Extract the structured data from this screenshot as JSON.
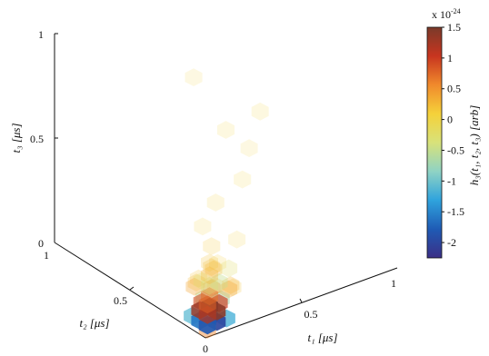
{
  "chart_data": {
    "type": "heatmap",
    "subtype": "3d-voxel-scatter",
    "axes": {
      "x": {
        "label": "t₁ [μs]",
        "range": [
          0,
          1
        ],
        "ticks": [
          "0",
          "0.5",
          "1"
        ]
      },
      "y": {
        "label": "t₂ [μs]",
        "range": [
          0,
          1
        ],
        "ticks": [
          "0",
          "0.5",
          "1"
        ]
      },
      "z": {
        "label": "t₃ [μs]",
        "range": [
          0,
          1
        ],
        "ticks": [
          "0",
          "0.5",
          "1"
        ]
      }
    },
    "colorbar": {
      "label": "h₃(t₁, t₂, t₃) [arb]",
      "multiplier": "x 10",
      "exponent": "-24",
      "range": [
        -2.25,
        1.5
      ],
      "ticks": [
        "1.5",
        "1",
        "0.5",
        "0",
        "-0.5",
        "-1",
        "-1.5",
        "-2"
      ],
      "tick_values": [
        1.5,
        1,
        0.5,
        0,
        -0.5,
        -1,
        -1.5,
        -2
      ],
      "colors": [
        "#3b2f86",
        "#1f5bb5",
        "#2fa3dd",
        "#8fd3c4",
        "#d8e27a",
        "#f5d13a",
        "#f08a2c",
        "#c8351f",
        "#7a3a2a"
      ]
    },
    "points": [
      {
        "t1": 0.05,
        "t2": 0.05,
        "t3": 0.02,
        "v": -1.8
      },
      {
        "t1": 0.1,
        "t2": 0.05,
        "t3": 0.02,
        "v": -2.0
      },
      {
        "t1": 0.05,
        "t2": 0.1,
        "t3": 0.02,
        "v": -1.6
      },
      {
        "t1": 0.1,
        "t2": 0.1,
        "t3": 0.02,
        "v": -1.4
      },
      {
        "t1": 0.15,
        "t2": 0.05,
        "t3": 0.02,
        "v": -1.2
      },
      {
        "t1": 0.05,
        "t2": 0.15,
        "t3": 0.02,
        "v": -1.1
      },
      {
        "t1": 0.05,
        "t2": 0.05,
        "t3": 0.07,
        "v": 1.2
      },
      {
        "t1": 0.1,
        "t2": 0.05,
        "t3": 0.07,
        "v": 1.4
      },
      {
        "t1": 0.05,
        "t2": 0.1,
        "t3": 0.07,
        "v": 1.3
      },
      {
        "t1": 0.1,
        "t2": 0.1,
        "t3": 0.07,
        "v": 1.5
      },
      {
        "t1": 0.15,
        "t2": 0.1,
        "t3": 0.07,
        "v": 1.0
      },
      {
        "t1": 0.1,
        "t2": 0.15,
        "t3": 0.07,
        "v": 0.9
      },
      {
        "t1": 0.05,
        "t2": 0.05,
        "t3": 0.12,
        "v": 0.8
      },
      {
        "t1": 0.1,
        "t2": 0.1,
        "t3": 0.12,
        "v": 0.7
      },
      {
        "t1": 0.15,
        "t2": 0.15,
        "t3": 0.12,
        "v": 0.5
      },
      {
        "t1": 0.2,
        "t2": 0.1,
        "t3": 0.12,
        "v": 0.4
      },
      {
        "t1": 0.1,
        "t2": 0.2,
        "t3": 0.12,
        "v": 0.4
      },
      {
        "t1": 0.05,
        "t2": 0.05,
        "t3": 0.0,
        "v": 0.6
      },
      {
        "t1": 0.15,
        "t2": 0.15,
        "t3": 0.02,
        "v": -0.6
      },
      {
        "t1": 0.2,
        "t2": 0.15,
        "t3": 0.05,
        "v": -0.7
      },
      {
        "t1": 0.15,
        "t2": 0.2,
        "t3": 0.05,
        "v": -0.6
      },
      {
        "t1": 0.1,
        "t2": 0.1,
        "t3": 0.17,
        "v": -0.4
      },
      {
        "t1": 0.15,
        "t2": 0.1,
        "t3": 0.17,
        "v": -0.5
      },
      {
        "t1": 0.1,
        "t2": 0.15,
        "t3": 0.17,
        "v": -0.3
      },
      {
        "t1": 0.1,
        "t2": 0.1,
        "t3": 0.22,
        "v": 0.3
      },
      {
        "t1": 0.15,
        "t2": 0.15,
        "t3": 0.22,
        "v": 0.25
      },
      {
        "t1": 0.2,
        "t2": 0.2,
        "t3": 0.17,
        "v": 0.3
      },
      {
        "t1": 0.25,
        "t2": 0.15,
        "t3": 0.1,
        "v": 0.3
      },
      {
        "t1": 0.15,
        "t2": 0.25,
        "t3": 0.1,
        "v": 0.25
      },
      {
        "t1": 0.1,
        "t2": 0.1,
        "t3": 0.28,
        "v": 0.2
      },
      {
        "t1": 0.2,
        "t2": 0.1,
        "t3": 0.22,
        "v": -0.25
      },
      {
        "t1": 0.25,
        "t2": 0.25,
        "t3": 0.05,
        "v": 0.2
      },
      {
        "t1": 0.3,
        "t2": 0.2,
        "t3": 0.05,
        "v": 0.2
      },
      {
        "t1": 0.2,
        "t2": 0.3,
        "t3": 0.08,
        "v": 0.18
      },
      {
        "t1": 0.15,
        "t2": 0.15,
        "t3": 0.32,
        "v": 0.15
      },
      {
        "t1": 0.3,
        "t2": 0.3,
        "t3": 0.12,
        "v": 0.12
      },
      {
        "t1": 0.4,
        "t2": 0.3,
        "t3": 0.2,
        "v": 0.1
      },
      {
        "t1": 0.3,
        "t2": 0.4,
        "t3": 0.25,
        "v": 0.1
      },
      {
        "t1": 0.25,
        "t2": 0.25,
        "t3": 0.45,
        "v": 0.1
      },
      {
        "t1": 0.5,
        "t2": 0.5,
        "t3": 0.6,
        "v": 0.08
      },
      {
        "t1": 0.6,
        "t2": 0.4,
        "t3": 0.7,
        "v": 0.07
      },
      {
        "t1": 0.35,
        "t2": 0.2,
        "t3": 0.55,
        "v": 0.08
      },
      {
        "t1": 0.7,
        "t2": 0.6,
        "t3": 0.4,
        "v": 0.06
      },
      {
        "t1": 0.45,
        "t2": 0.65,
        "t3": 0.8,
        "v": 0.06
      }
    ]
  }
}
